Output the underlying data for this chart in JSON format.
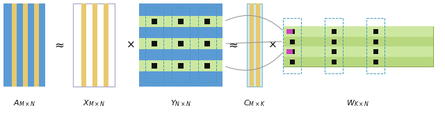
{
  "blue": "#5b9bd5",
  "yellow": "#e8c96e",
  "green_light": "#cce8a0",
  "green_mid": "#b8d880",
  "black": "#111111",
  "magenta": "#cc44bb",
  "dashed_blue": "#4499bb",
  "bg": "#ffffff",
  "gray": "#999999",
  "border_gray": "#aaaacc",
  "teal_bg": "#d0eaee",
  "teal_border": "#88bbcc",
  "approx": "≈",
  "times": "×",
  "fig_w": 6.4,
  "fig_h": 1.79,
  "dpi": 100
}
